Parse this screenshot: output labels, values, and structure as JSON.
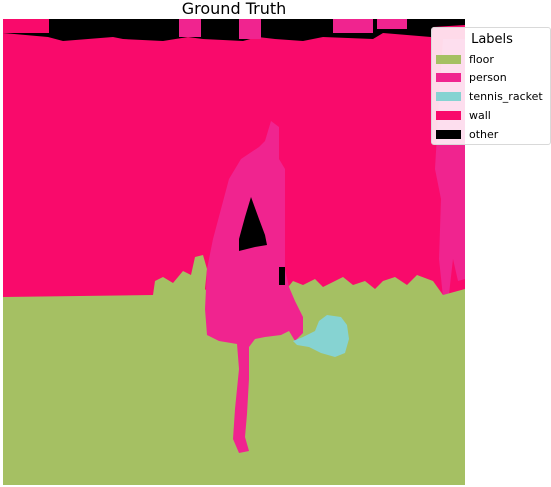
{
  "title": "Ground Truth",
  "legend": {
    "title": "Labels",
    "items": [
      {
        "label": "floor",
        "color": "#a5c063"
      },
      {
        "label": "person",
        "color": "#f0248f"
      },
      {
        "label": "tennis_racket",
        "color": "#86d3d2"
      },
      {
        "label": "wall",
        "color": "#f90a6b"
      },
      {
        "label": "other",
        "color": "#000000"
      }
    ]
  }
}
